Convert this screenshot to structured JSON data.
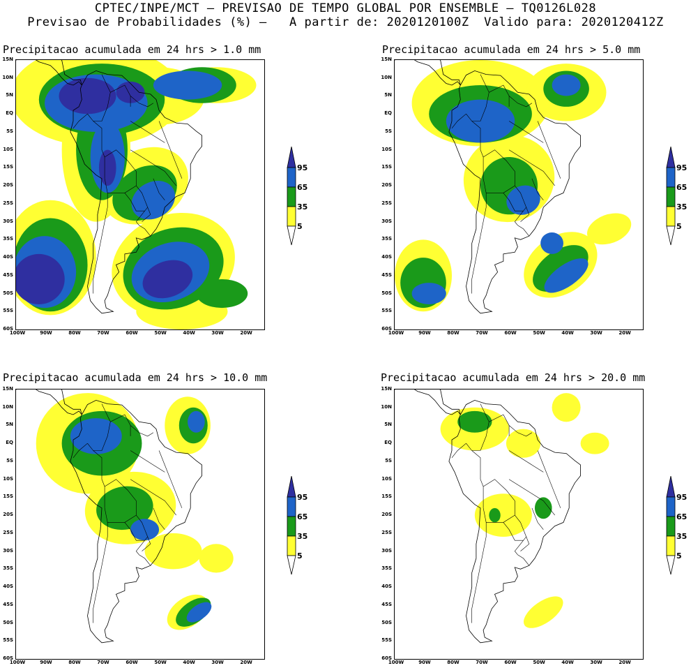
{
  "header": {
    "line1": "CPTEC/INPE/MCT – PREVISAO DE TEMPO GLOBAL POR ENSEMBLE – TQ0126L028",
    "line2": "Previsao de Probabilidades (%) –   A partir de: 2020120100Z  Valido para: 2020120412Z"
  },
  "lat_ticks": [
    "15N",
    "10N",
    "5N",
    "EQ",
    "5S",
    "10S",
    "15S",
    "20S",
    "25S",
    "30S",
    "35S",
    "40S",
    "45S",
    "50S",
    "55S",
    "60S"
  ],
  "lon_ticks": [
    "100W",
    "90W",
    "80W",
    "70W",
    "60W",
    "50W",
    "40W",
    "30W",
    "20W"
  ],
  "legend": {
    "levels": [
      "95",
      "65",
      "35",
      "5"
    ],
    "colors": {
      "c95": "#2f2fa0",
      "c65": "#1e64c8",
      "c35": "#1a9a1a",
      "c5": "#ffff33"
    }
  },
  "panels": [
    {
      "id": "p1",
      "title": "Precipitacao acumulada em 24 hrs > 1.0 mm"
    },
    {
      "id": "p2",
      "title": "Precipitacao acumulada em 24 hrs > 5.0 mm"
    },
    {
      "id": "p3",
      "title": "Precipitacao acumulada em 24 hrs > 10.0 mm"
    },
    {
      "id": "p4",
      "title": "Precipitacao acumulada em 24 hrs > 20.0 mm"
    }
  ]
}
